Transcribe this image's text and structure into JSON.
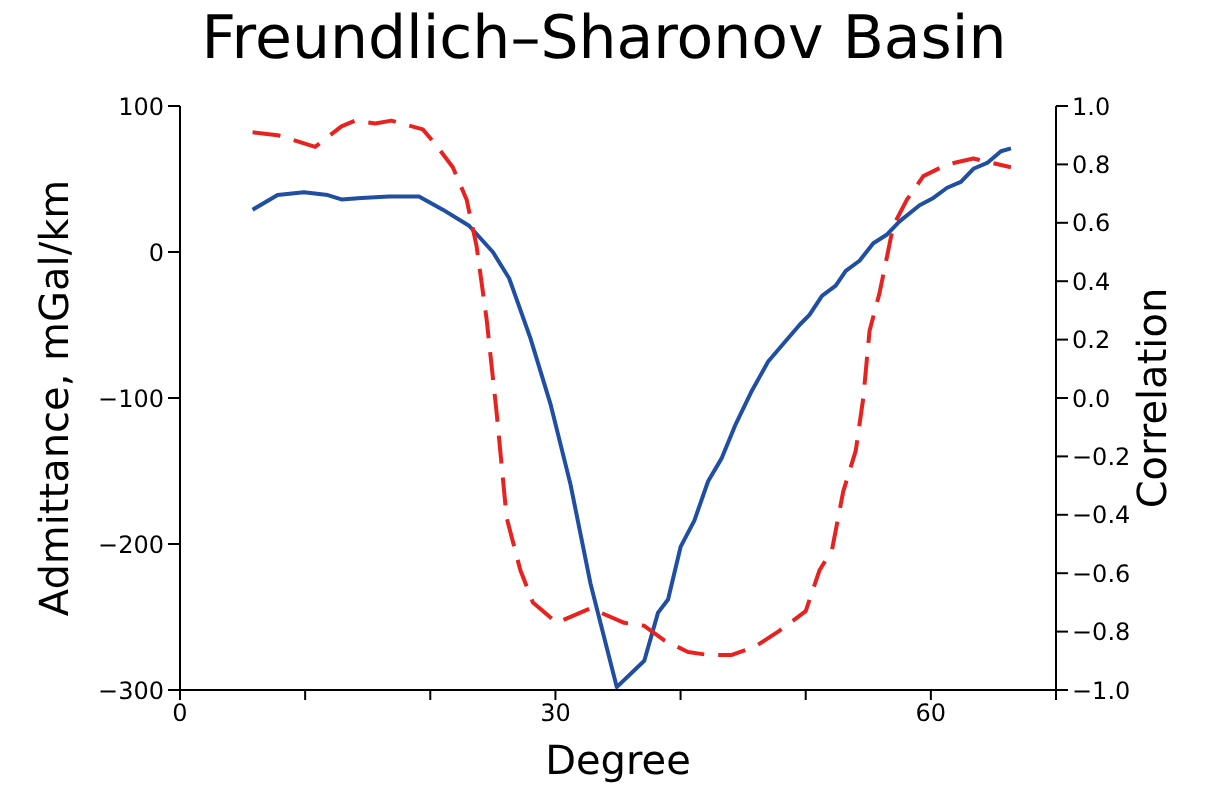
{
  "chart_data": {
    "type": "line",
    "title": "Freundlich–Sharonov Basin",
    "xlabel": "Degree",
    "ylabel": "Admittance, mGal/km",
    "y2label": "Correlation",
    "xlim": [
      0,
      70
    ],
    "xticks": [
      0,
      {
        "value": 10,
        "label": null
      },
      {
        "value": 20,
        "label": null
      },
      30,
      {
        "value": 40,
        "label": null
      },
      {
        "value": 50,
        "label": null
      },
      60,
      {
        "value": 70,
        "label": null
      }
    ],
    "ylim": [
      -300,
      100
    ],
    "yticks": [
      {
        "value": -300,
        "label": "−300"
      },
      {
        "value": -200,
        "label": "−200"
      },
      {
        "value": -100,
        "label": "−100"
      },
      0,
      100
    ],
    "y2lim": [
      -1,
      1
    ],
    "y2ticks": [
      {
        "value": -1,
        "label": "−1.0"
      },
      {
        "value": -0.8,
        "label": "−0.8"
      },
      {
        "value": -0.6,
        "label": "−0.6"
      },
      {
        "value": -0.4,
        "label": "−0.4"
      },
      {
        "value": -0.2,
        "label": "−0.2"
      },
      {
        "value": 0,
        "label": "0.0"
      },
      {
        "value": 0.2,
        "label": "0.2"
      },
      {
        "value": 0.4,
        "label": "0.4"
      },
      {
        "value": 0.6,
        "label": "0.6"
      },
      {
        "value": 0.8,
        "label": "0.8"
      },
      {
        "value": 1,
        "label": "1.0"
      }
    ],
    "grid": false,
    "legend": false,
    "marker": "none",
    "series": [
      {
        "color": "#1f4ea3",
        "line_style": "solid",
        "x": [
          5.8,
          7.8,
          9.9,
          11.8,
          12.9,
          14.5,
          16.7,
          19.1,
          21,
          23.1,
          25,
          26.3,
          28,
          29.6,
          31.2,
          32.8,
          34.9,
          37.1,
          38.2,
          39,
          40,
          41.1,
          42.2,
          43.3,
          44.4,
          45.7,
          47,
          48.4,
          49.5,
          50.3,
          51.3,
          52.4,
          53.2,
          54.3,
          55.4,
          56.5,
          57.5,
          59.1,
          60.2,
          61.3,
          62.4,
          63.4,
          64.5,
          65.6,
          66.4
        ],
        "values": [
          29,
          39,
          41,
          39,
          36,
          37,
          38,
          38,
          29,
          18,
          0,
          -18,
          -59,
          -104,
          -159,
          -227,
          -298,
          -280,
          -247,
          -238,
          -202,
          -184,
          -157,
          -141,
          -118,
          -95,
          -75,
          -61,
          -50,
          -43,
          -30,
          -23,
          -13,
          -6,
          6,
          12,
          21,
          32,
          37,
          44,
          48,
          57,
          61,
          69,
          71
        ]
      },
      {
        "color": "#e8221f",
        "line_style": "dashed",
        "axis": "y2",
        "x": [
          5.8,
          7.8,
          10.8,
          12.9,
          14,
          15.6,
          16.9,
          19.4,
          20.4,
          21.8,
          22.9,
          23.7,
          24.5,
          25.3,
          26.1,
          27.2,
          28.2,
          30.1,
          32.8,
          35.5,
          37.1,
          38.7,
          40.6,
          42.2,
          44.1,
          46,
          47.8,
          50,
          51.1,
          52.1,
          53,
          54,
          54.6,
          55.1,
          55.9,
          57,
          58.1,
          59.4,
          61.3,
          63.4,
          66.4
        ],
        "values": [
          0.91,
          0.9,
          0.86,
          0.93,
          0.95,
          0.94,
          0.95,
          0.92,
          0.87,
          0.79,
          0.68,
          0.52,
          0.27,
          -0.05,
          -0.41,
          -0.59,
          -0.7,
          -0.77,
          -0.72,
          -0.77,
          -0.78,
          -0.83,
          -0.87,
          -0.88,
          -0.88,
          -0.85,
          -0.8,
          -0.73,
          -0.59,
          -0.52,
          -0.32,
          -0.18,
          0,
          0.23,
          0.36,
          0.59,
          0.68,
          0.76,
          0.8,
          0.82,
          0.79
        ]
      }
    ]
  }
}
